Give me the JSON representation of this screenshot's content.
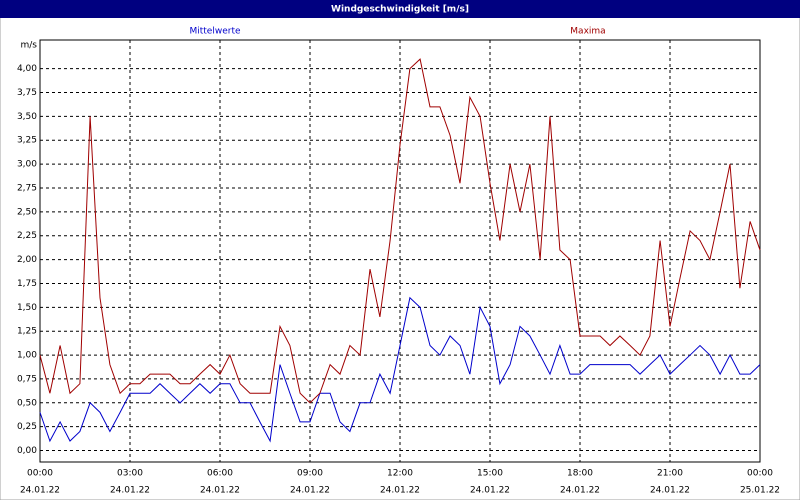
{
  "chart_data": {
    "type": "line",
    "title": "Windgeschwindigkeit [m/s]",
    "y_label": "m/s",
    "x": [
      0,
      0.33,
      0.67,
      1,
      1.33,
      1.67,
      2,
      2.33,
      2.67,
      3,
      3.33,
      3.67,
      4,
      4.33,
      4.67,
      5,
      5.33,
      5.67,
      6,
      6.33,
      6.67,
      7,
      7.33,
      7.67,
      8,
      8.33,
      8.67,
      9,
      9.33,
      9.67,
      10,
      10.33,
      10.67,
      11,
      11.33,
      11.67,
      12,
      12.33,
      12.67,
      13,
      13.33,
      13.67,
      14,
      14.33,
      14.67,
      15,
      15.33,
      15.67,
      16,
      16.33,
      16.67,
      17,
      17.33,
      17.67,
      18,
      18.33,
      18.67,
      19,
      19.33,
      19.67,
      20,
      20.33,
      20.67,
      21,
      21.33,
      21.67,
      22,
      22.33,
      22.67,
      23,
      23.33,
      23.67,
      24
    ],
    "series": [
      {
        "name": "Mittelwerte",
        "color": "#0000cc",
        "values": [
          0.4,
          0.1,
          0.3,
          0.1,
          0.2,
          0.5,
          0.4,
          0.2,
          0.4,
          0.6,
          0.6,
          0.6,
          0.7,
          0.6,
          0.5,
          0.6,
          0.7,
          0.6,
          0.7,
          0.7,
          0.5,
          0.5,
          0.3,
          0.1,
          0.9,
          0.6,
          0.3,
          0.3,
          0.6,
          0.6,
          0.3,
          0.2,
          0.5,
          0.5,
          0.8,
          0.6,
          1.1,
          1.6,
          1.5,
          1.1,
          1.0,
          1.2,
          1.1,
          0.8,
          1.5,
          1.3,
          0.7,
          0.9,
          1.3,
          1.2,
          1.0,
          0.8,
          1.1,
          0.8,
          0.8,
          0.9,
          0.9,
          0.9,
          0.9,
          0.9,
          0.8,
          0.9,
          1.0,
          0.8,
          0.9,
          1.0,
          1.1,
          1.0,
          0.8,
          1.0,
          0.8,
          0.8,
          0.9
        ]
      },
      {
        "name": "Maxima",
        "color": "#a00000",
        "values": [
          1.0,
          0.6,
          1.1,
          0.6,
          0.7,
          3.5,
          1.6,
          0.9,
          0.6,
          0.7,
          0.7,
          0.8,
          0.8,
          0.8,
          0.7,
          0.7,
          0.8,
          0.9,
          0.8,
          1.0,
          0.7,
          0.6,
          0.6,
          0.6,
          1.3,
          1.1,
          0.6,
          0.5,
          0.6,
          0.9,
          0.8,
          1.1,
          1.0,
          1.9,
          1.4,
          2.2,
          3.2,
          4.0,
          4.1,
          3.6,
          3.6,
          3.3,
          2.8,
          3.7,
          3.5,
          2.8,
          2.2,
          3.0,
          2.5,
          3.0,
          2.0,
          3.5,
          2.1,
          2.0,
          1.2,
          1.2,
          1.2,
          1.1,
          1.2,
          1.1,
          1.0,
          1.2,
          2.2,
          1.3,
          1.8,
          2.3,
          2.2,
          2.0,
          2.5,
          3.0,
          1.7,
          2.4,
          2.1
        ]
      }
    ],
    "xlim": [
      0,
      24
    ],
    "ylim": [
      -0.12,
      4.3
    ],
    "xticks": [
      {
        "value": 0,
        "label": "00:00"
      },
      {
        "value": 3,
        "label": "03:00"
      },
      {
        "value": 6,
        "label": "06:00"
      },
      {
        "value": 9,
        "label": "09:00"
      },
      {
        "value": 12,
        "label": "12:00"
      },
      {
        "value": 15,
        "label": "15:00"
      },
      {
        "value": 18,
        "label": "18:00"
      },
      {
        "value": 21,
        "label": "21:00"
      },
      {
        "value": 24,
        "label": "00:00"
      }
    ],
    "xtick_dates": [
      "24.01.22",
      "24.01.22",
      "24.01.22",
      "24.01.22",
      "24.01.22",
      "24.01.22",
      "24.01.22",
      "24.01.22",
      "25.01.22"
    ],
    "yticks": [
      {
        "value": 0,
        "label": "0,00"
      },
      {
        "value": 0.25,
        "label": "0,25"
      },
      {
        "value": 0.5,
        "label": "0,50"
      },
      {
        "value": 0.75,
        "label": "0,75"
      },
      {
        "value": 1,
        "label": "1,00"
      },
      {
        "value": 1.25,
        "label": "1,25"
      },
      {
        "value": 1.5,
        "label": "1,50"
      },
      {
        "value": 1.75,
        "label": "1,75"
      },
      {
        "value": 2,
        "label": "2,00"
      },
      {
        "value": 2.25,
        "label": "2,25"
      },
      {
        "value": 2.5,
        "label": "2,50"
      },
      {
        "value": 2.75,
        "label": "2,75"
      },
      {
        "value": 3,
        "label": "3,00"
      },
      {
        "value": 3.25,
        "label": "3,25"
      },
      {
        "value": 3.5,
        "label": "3,50"
      },
      {
        "value": 3.75,
        "label": "3,75"
      },
      {
        "value": 4,
        "label": "4,00"
      }
    ],
    "grid": true
  }
}
